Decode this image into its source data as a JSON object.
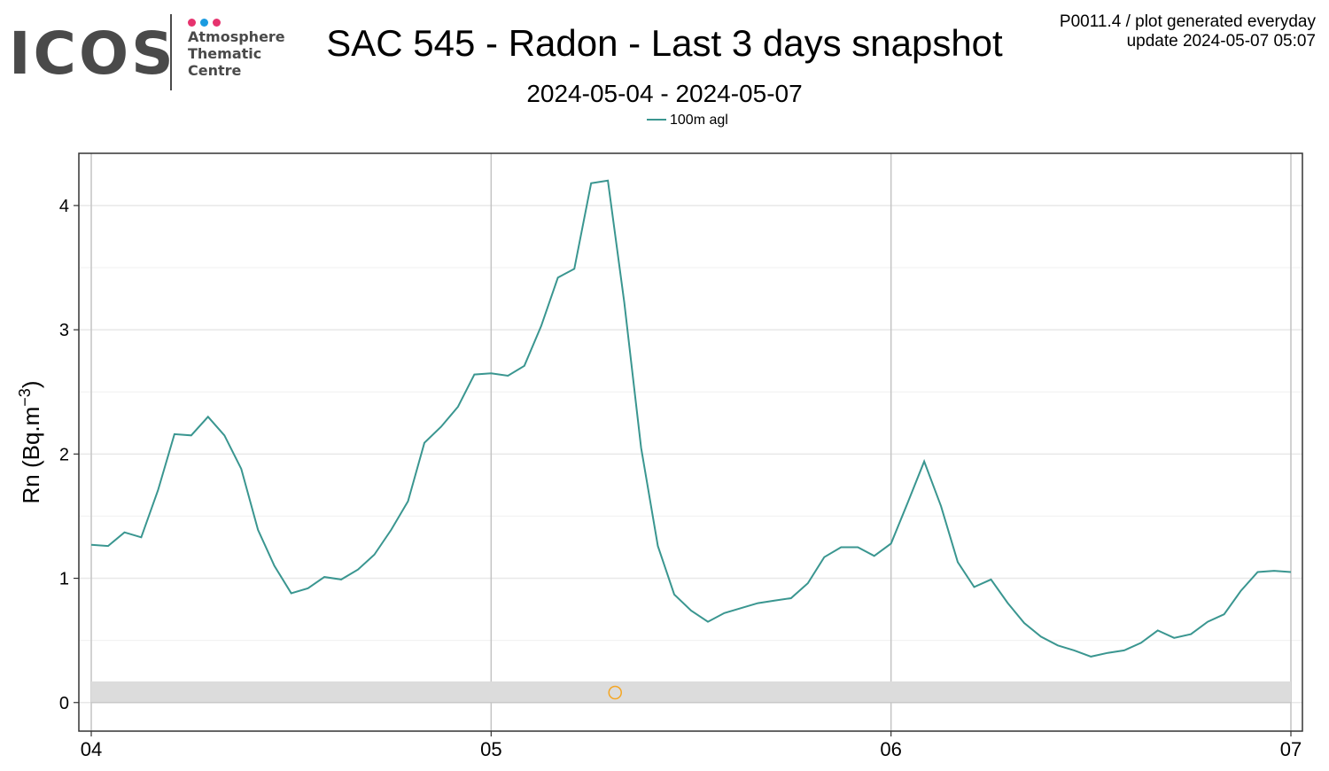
{
  "header": {
    "title": "SAC 545 - Radon - Last 3 days snapshot",
    "subtitle": "2024-05-04 - 2024-05-07",
    "generated_line1": "P0011.4 / plot generated everyday",
    "generated_line2": "update  2024-05-07 05:07"
  },
  "logo": {
    "word": "ICOS",
    "line1": "Atmosphere",
    "line2": "Thematic",
    "line3": "Centre",
    "dot_colors": [
      "#e6336e",
      "#1a9be0",
      "#e6336e"
    ],
    "text_color": "#4a4a4a"
  },
  "chart_data": {
    "type": "line",
    "title": "SAC 545 - Radon - Last 3 days snapshot",
    "subtitle": "2024-05-04 - 2024-05-07",
    "ylabel": "Rn (Bq.m-3)",
    "ylabel_main": "Rn (Bq.m",
    "ylabel_sup": "−3",
    "ylabel_close": ")",
    "xlabel": "",
    "xlim": [
      0,
      3.0
    ],
    "ylim": [
      -0.23,
      4.42
    ],
    "x_ticks": [
      0,
      1,
      2,
      3
    ],
    "x_tick_labels": [
      "04",
      "05",
      "06",
      "07"
    ],
    "y_ticks": [
      0,
      1,
      2,
      3,
      4
    ],
    "y_tick_labels": [
      "0",
      "1",
      "2",
      "3",
      "4"
    ],
    "grid": true,
    "legend_position": "top-center",
    "series": [
      {
        "name": "100m agl",
        "color": "#3a9690",
        "x": [
          0,
          0.042,
          0.083,
          0.125,
          0.167,
          0.208,
          0.25,
          0.292,
          0.333,
          0.375,
          0.417,
          0.458,
          0.5,
          0.542,
          0.583,
          0.625,
          0.667,
          0.708,
          0.75,
          0.792,
          0.833,
          0.875,
          0.917,
          0.958,
          1.0,
          1.042,
          1.083,
          1.125,
          1.167,
          1.208,
          1.25,
          1.292,
          1.333,
          1.375,
          1.417,
          1.458,
          1.5,
          1.542,
          1.583,
          1.625,
          1.667,
          1.708,
          1.75,
          1.792,
          1.833,
          1.875,
          1.917,
          1.958,
          2.0,
          2.042,
          2.083,
          2.125,
          2.167,
          2.208,
          2.25,
          2.292,
          2.333,
          2.375,
          2.417,
          2.458,
          2.5,
          2.542,
          2.583,
          2.625,
          2.667,
          2.708,
          2.75,
          2.792,
          2.833,
          2.875,
          2.917,
          2.958,
          3.0
        ],
        "y": [
          1.27,
          1.26,
          1.37,
          1.33,
          1.71,
          2.16,
          2.15,
          2.3,
          2.15,
          1.88,
          1.39,
          1.1,
          0.88,
          0.92,
          1.01,
          0.99,
          1.07,
          1.19,
          1.39,
          1.62,
          2.09,
          2.22,
          2.38,
          2.64,
          2.65,
          2.63,
          2.71,
          3.03,
          3.42,
          3.49,
          4.18,
          4.2,
          3.22,
          2.05,
          1.26,
          0.87,
          0.74,
          0.65,
          0.72,
          0.76,
          0.8,
          0.82,
          0.84,
          0.96,
          1.17,
          1.25,
          1.25,
          1.18,
          1.28,
          1.61,
          1.94,
          1.58,
          1.13,
          0.93,
          0.99,
          0.8,
          0.64,
          0.53,
          0.46,
          0.42,
          0.37,
          0.4,
          0.42,
          0.48,
          0.58,
          0.52,
          0.55,
          0.65,
          0.71,
          0.9,
          1.05,
          1.06,
          1.05
        ]
      },
      {
        "name": "",
        "color": "#f5a623",
        "marker": "open-circle",
        "x": [
          1.31
        ],
        "y": [
          0.08
        ]
      }
    ],
    "band": {
      "y_from": 0,
      "y_to": 0.17,
      "color": "#dcdcdc"
    }
  }
}
